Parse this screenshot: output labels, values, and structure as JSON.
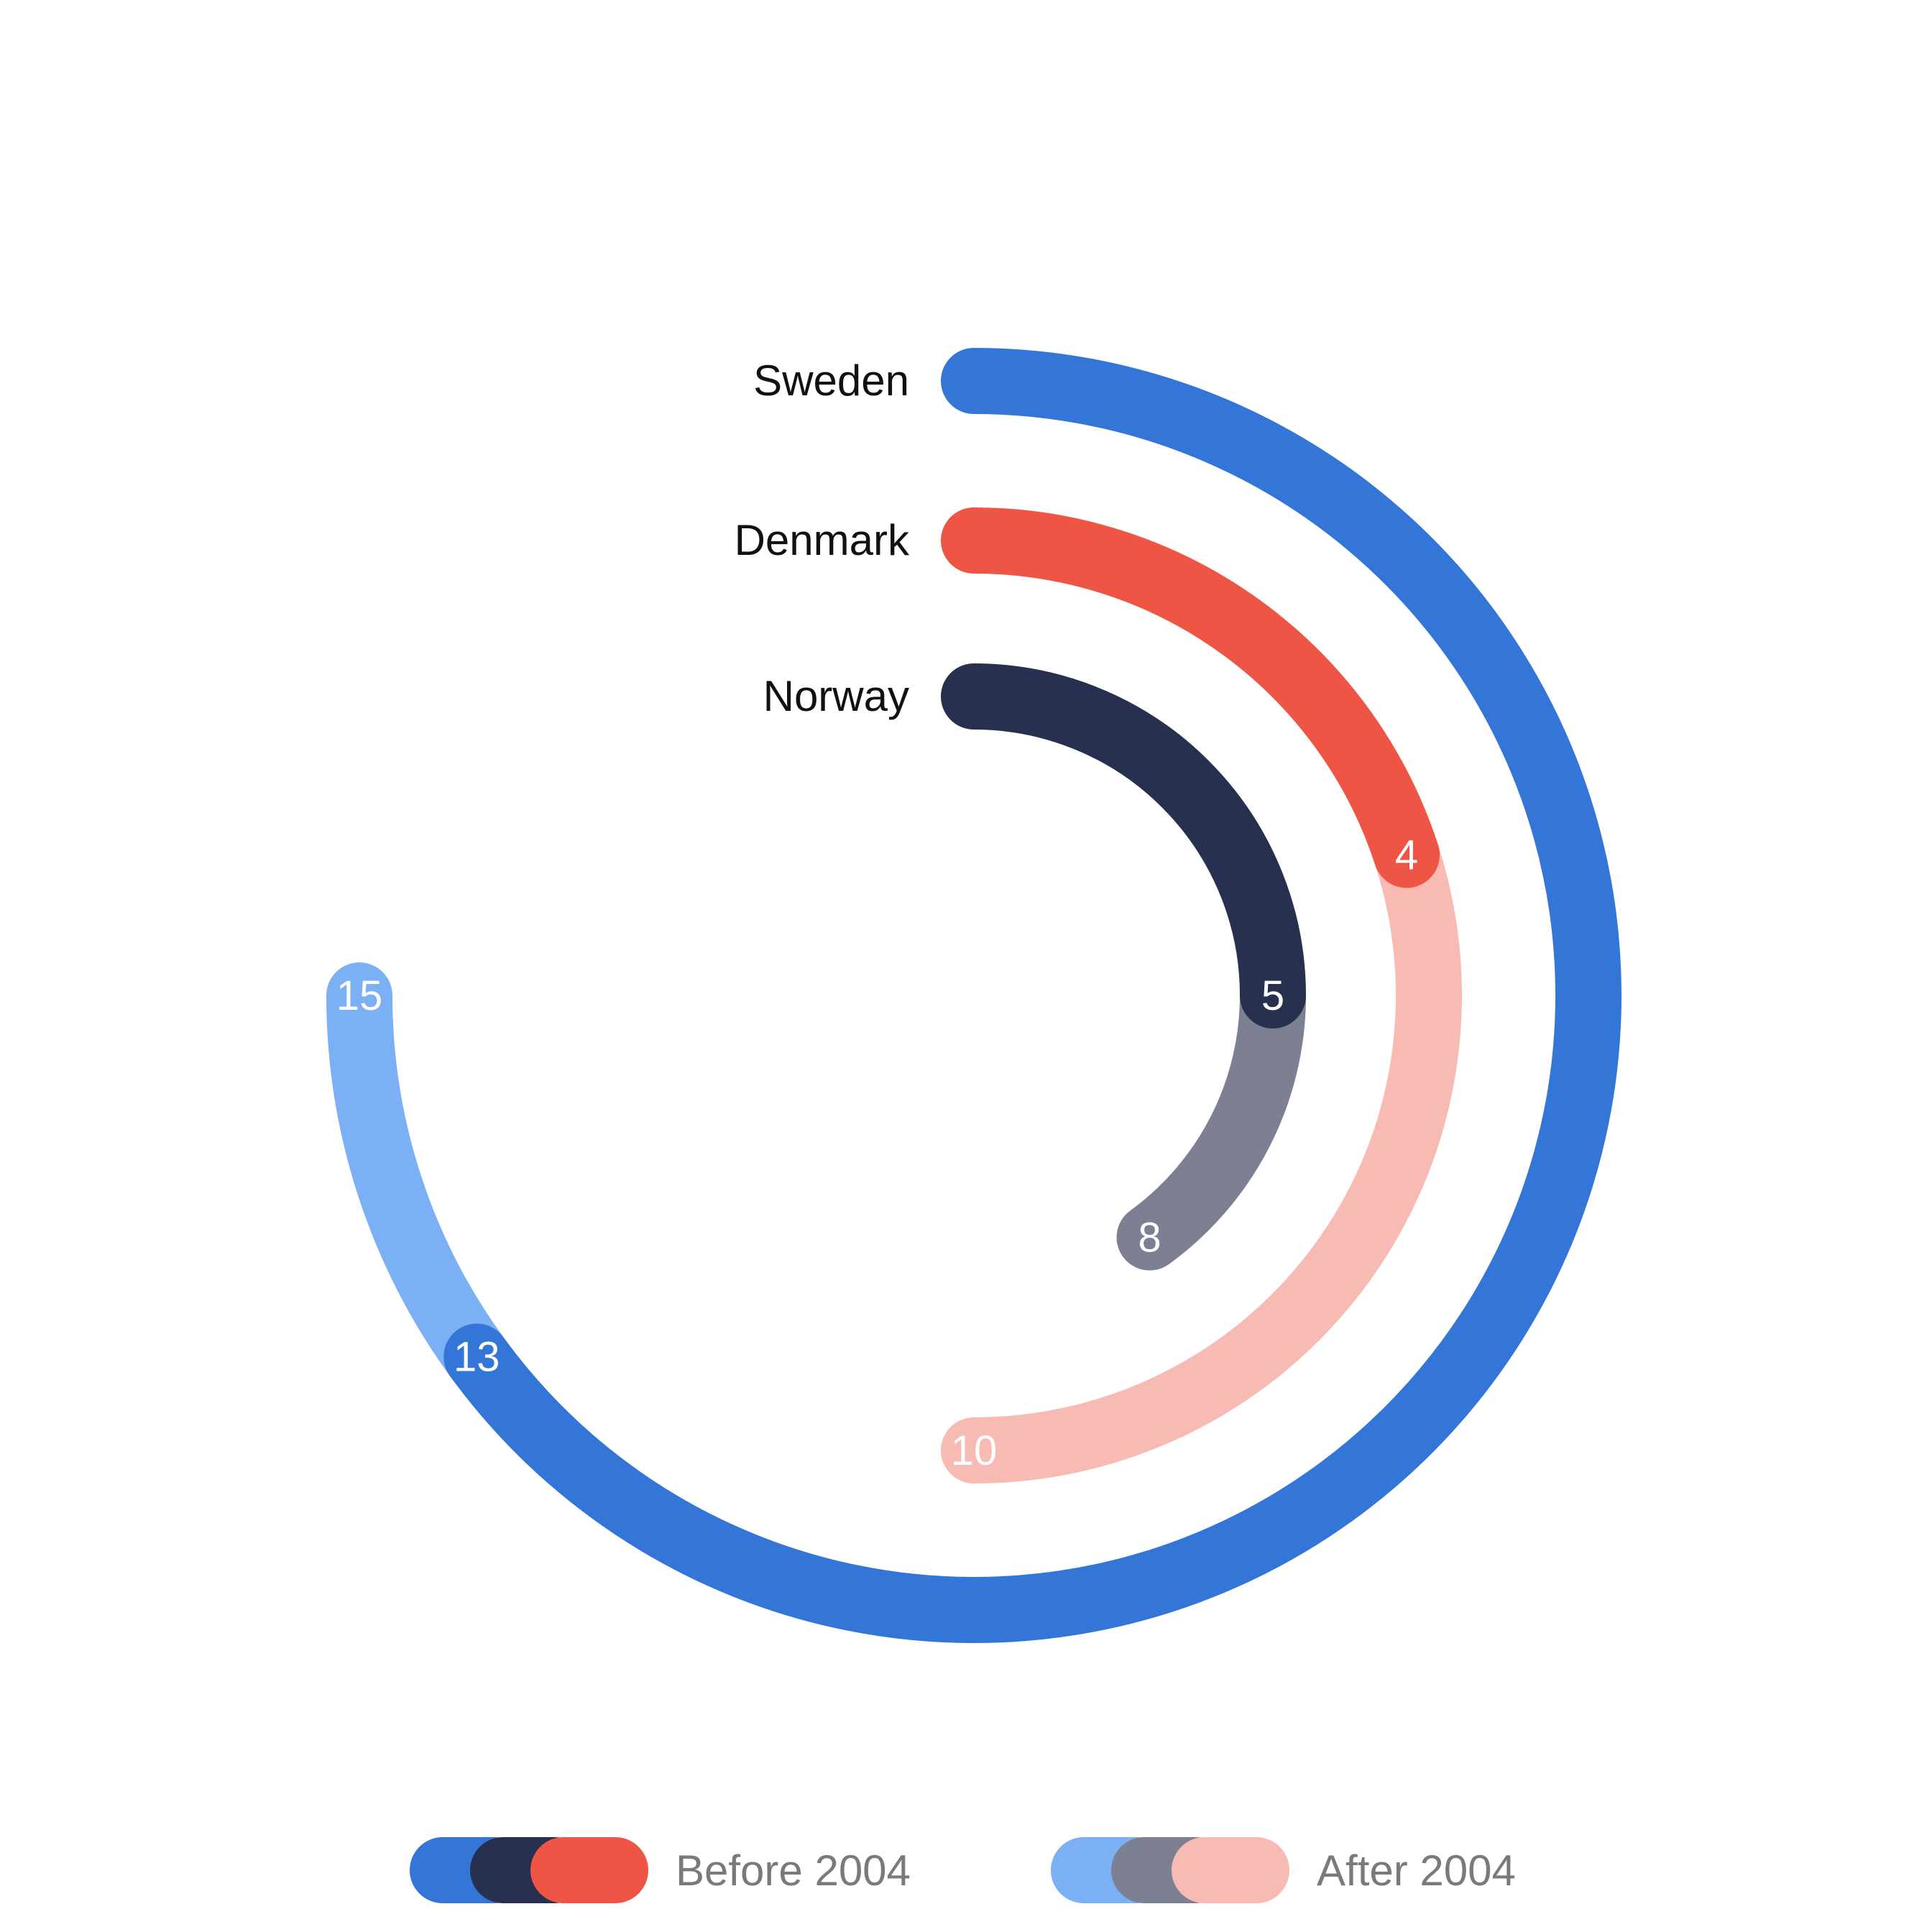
{
  "chart_data": {
    "type": "radial-bar",
    "scale_max": 20,
    "series_names": [
      "Before 2004",
      "After 2004"
    ],
    "rows": [
      {
        "name": "Sweden",
        "before": 13,
        "after": 15,
        "color_before": "#3475D8",
        "color_after": "#7BB0F5"
      },
      {
        "name": "Denmark",
        "before": 4,
        "after": 10,
        "color_before": "#EF5544",
        "color_after": "#F8BBB4"
      },
      {
        "name": "Norway",
        "before": 5,
        "after": 8,
        "color_before": "#283050",
        "color_after": "#7C8092"
      }
    ],
    "legend": [
      {
        "label": "Before 2004",
        "colors": [
          "#3475D8",
          "#283050",
          "#EF5544"
        ]
      },
      {
        "label": "After 2004",
        "colors": [
          "#7BB0F5",
          "#7C8092",
          "#F8BBB4"
        ]
      }
    ],
    "legend_position": "bottom"
  }
}
